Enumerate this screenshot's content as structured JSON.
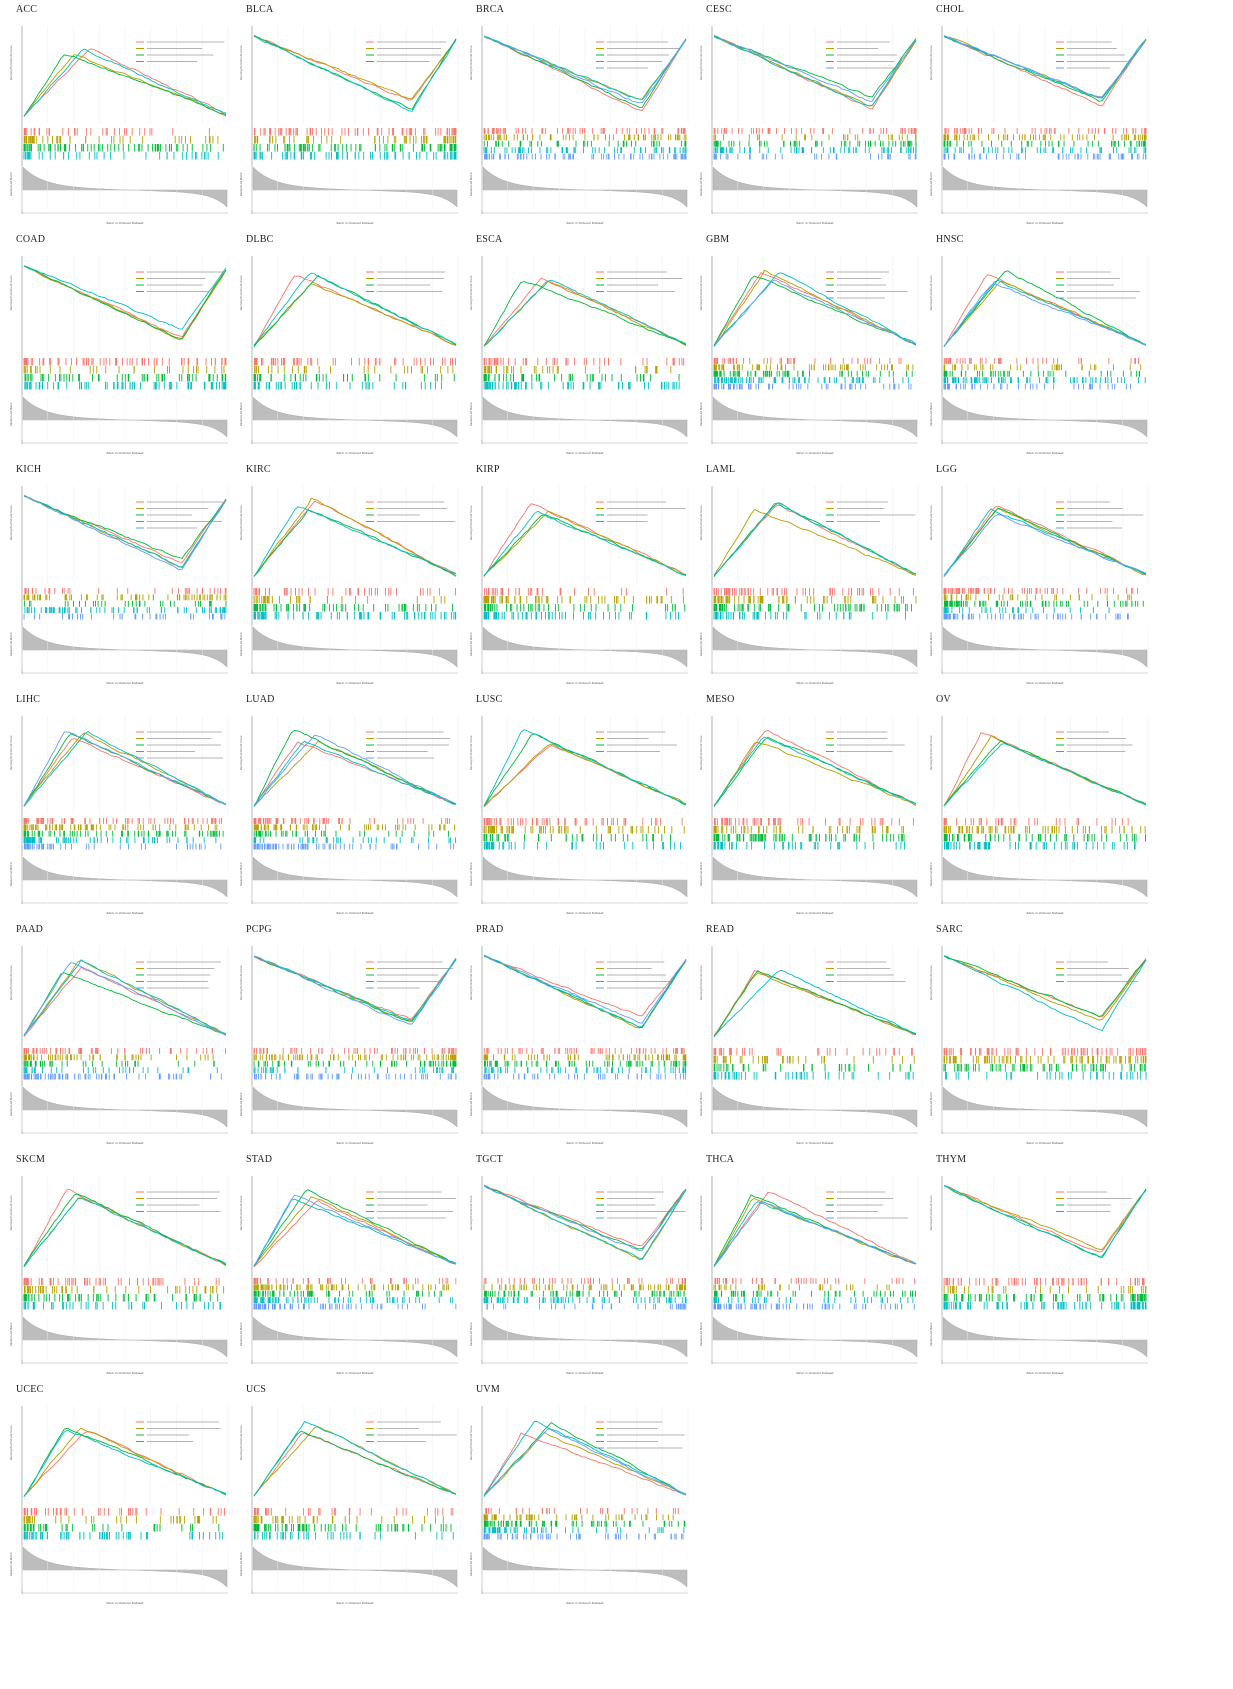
{
  "figure": {
    "panel_titles": [
      "ACC",
      "BLCA",
      "BRCA",
      "CESC",
      "CHOL",
      "COAD",
      "DLBC",
      "ESCA",
      "GBM",
      "HNSC",
      "KICH",
      "KIRC",
      "KIRP",
      "LAML",
      "LGG",
      "LIHC",
      "LUAD",
      "LUSC",
      "MESO",
      "OV",
      "PAAD",
      "PCPG",
      "PRAD",
      "READ",
      "SARC",
      "SKCM",
      "STAD",
      "TGCT",
      "THCA",
      "THYM",
      "UCEC",
      "UCS",
      "UVM"
    ],
    "ylabel_top": "Running Enrichment Score",
    "ylabel_bottom": "Ranked List Metric",
    "xlabel": "Rank in Ordered Dataset",
    "series_colors": [
      "#f8766d",
      "#b79f00",
      "#00ba38",
      "#00bfc4",
      "#619cff",
      "#f564e3"
    ]
  },
  "chart_data": {
    "type": "line",
    "note_series": "gsea running enrichment score curves per cancer type",
    "panels": [
      {
        "title": "ACC",
        "shape": "up"
      },
      {
        "title": "BLCA",
        "shape": "down"
      },
      {
        "title": "BRCA",
        "shape": "down"
      },
      {
        "title": "CESC",
        "shape": "down"
      },
      {
        "title": "CHOL",
        "shape": "down"
      },
      {
        "title": "COAD",
        "shape": "down"
      },
      {
        "title": "DLBC",
        "shape": "up"
      },
      {
        "title": "ESCA",
        "shape": "up"
      },
      {
        "title": "GBM",
        "shape": "up"
      },
      {
        "title": "HNSC",
        "shape": "up"
      },
      {
        "title": "KICH",
        "shape": "down"
      },
      {
        "title": "KIRC",
        "shape": "up"
      },
      {
        "title": "KIRP",
        "shape": "up"
      },
      {
        "title": "LAML",
        "shape": "up"
      },
      {
        "title": "LGG",
        "shape": "up"
      },
      {
        "title": "LIHC",
        "shape": "up"
      },
      {
        "title": "LUAD",
        "shape": "up"
      },
      {
        "title": "LUSC",
        "shape": "up"
      },
      {
        "title": "MESO",
        "shape": "up"
      },
      {
        "title": "OV",
        "shape": "up"
      },
      {
        "title": "PAAD",
        "shape": "up"
      },
      {
        "title": "PCPG",
        "shape": "down"
      },
      {
        "title": "PRAD",
        "shape": "down"
      },
      {
        "title": "READ",
        "shape": "up"
      },
      {
        "title": "SARC",
        "shape": "down"
      },
      {
        "title": "SKCM",
        "shape": "up"
      },
      {
        "title": "STAD",
        "shape": "up"
      },
      {
        "title": "TGCT",
        "shape": "down"
      },
      {
        "title": "THCA",
        "shape": "up"
      },
      {
        "title": "THYM",
        "shape": "down"
      },
      {
        "title": "UCEC",
        "shape": "up"
      },
      {
        "title": "UCS",
        "shape": "up"
      },
      {
        "title": "UVM",
        "shape": "up"
      }
    ]
  }
}
